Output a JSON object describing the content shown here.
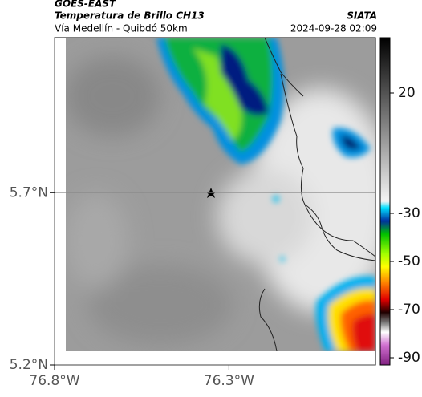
{
  "header": {
    "title": "GOES-EAST",
    "subtitle": "Temperatura de Brillo CH13",
    "region": "Vía Medellín - Quibdó 50km",
    "source": "SIATA",
    "datetime": "2024-09-28 02:09"
  },
  "map": {
    "xlim": [
      -76.8,
      -75.88
    ],
    "ylim": [
      5.2,
      6.15
    ],
    "xticks": [
      {
        "value": -76.8,
        "label": "76.8°W"
      },
      {
        "value": -76.3,
        "label": "76.3°W"
      }
    ],
    "yticks": [
      {
        "value": 5.7,
        "label": "5.7°N"
      },
      {
        "value": 5.2,
        "label": "5.2°N"
      }
    ],
    "grid": true
  },
  "colorbar": {
    "lim": [
      -93,
      43
    ],
    "ticks": [
      20,
      -30,
      -50,
      -70,
      -90
    ]
  }
}
